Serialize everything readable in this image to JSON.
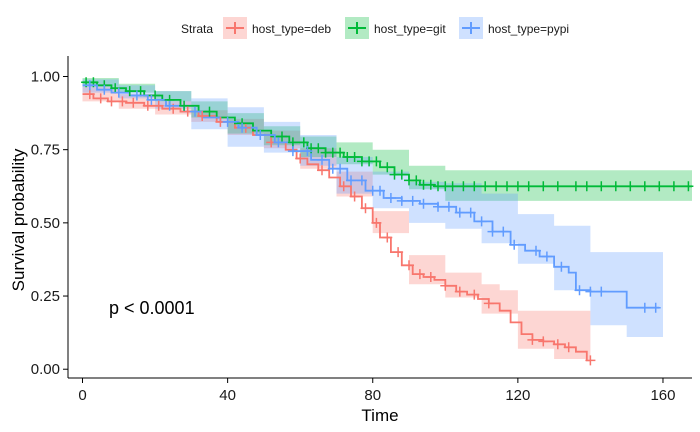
{
  "chart_data": {
    "type": "line",
    "subtype": "kaplan-meier survival curve with confidence bands and censor marks",
    "xlabel": "Time",
    "ylabel": "Survival probability",
    "xlim": [
      -4,
      168
    ],
    "ylim": [
      -0.03,
      1.07
    ],
    "x_ticks": [
      0,
      40,
      80,
      120,
      160
    ],
    "y_ticks": [
      0.0,
      0.25,
      0.5,
      0.75,
      1.0
    ],
    "y_tick_labels": [
      "0.00",
      "0.25",
      "0.50",
      "0.75",
      "1.00"
    ],
    "grid": false,
    "legend": {
      "title": "Strata",
      "placement": "top",
      "entries": [
        "host_type=deb",
        "host_type=git",
        "host_type=pypi"
      ]
    },
    "annotation": "p < 0.0001",
    "series": [
      {
        "name": "host_type=deb",
        "color": "#F8766D",
        "points": [
          [
            0,
            0.94
          ],
          [
            3,
            0.925
          ],
          [
            7,
            0.915
          ],
          [
            12,
            0.91
          ],
          [
            17,
            0.9
          ],
          [
            22,
            0.89
          ],
          [
            27,
            0.88
          ],
          [
            32,
            0.865
          ],
          [
            37,
            0.845
          ],
          [
            42,
            0.825
          ],
          [
            47,
            0.8
          ],
          [
            52,
            0.775
          ],
          [
            56,
            0.75
          ],
          [
            59,
            0.72
          ],
          [
            62,
            0.7
          ],
          [
            65,
            0.68
          ],
          [
            68,
            0.655
          ],
          [
            71,
            0.625
          ],
          [
            74,
            0.59
          ],
          [
            77,
            0.55
          ],
          [
            80,
            0.5
          ],
          [
            82,
            0.45
          ],
          [
            85,
            0.4
          ],
          [
            88,
            0.355
          ],
          [
            91,
            0.325
          ],
          [
            94,
            0.315
          ],
          [
            97,
            0.305
          ],
          [
            100,
            0.285
          ],
          [
            103,
            0.265
          ],
          [
            106,
            0.255
          ],
          [
            109,
            0.24
          ],
          [
            112,
            0.225
          ],
          [
            115,
            0.2
          ],
          [
            118,
            0.16
          ],
          [
            121,
            0.12
          ],
          [
            124,
            0.1
          ],
          [
            127,
            0.095
          ],
          [
            130,
            0.085
          ],
          [
            133,
            0.075
          ],
          [
            136,
            0.06
          ],
          [
            139,
            0.03
          ],
          [
            140,
            0.03
          ]
        ],
        "ci_upper": [
          [
            0,
            0.965
          ],
          [
            10,
            0.94
          ],
          [
            20,
            0.915
          ],
          [
            30,
            0.885
          ],
          [
            40,
            0.855
          ],
          [
            50,
            0.815
          ],
          [
            60,
            0.755
          ],
          [
            70,
            0.675
          ],
          [
            80,
            0.54
          ],
          [
            90,
            0.39
          ],
          [
            100,
            0.33
          ],
          [
            110,
            0.29
          ],
          [
            115,
            0.27
          ],
          [
            120,
            0.2
          ],
          [
            130,
            0.2
          ],
          [
            140,
            0.2
          ]
        ],
        "ci_lower": [
          [
            0,
            0.915
          ],
          [
            10,
            0.89
          ],
          [
            20,
            0.87
          ],
          [
            30,
            0.845
          ],
          [
            40,
            0.8
          ],
          [
            50,
            0.755
          ],
          [
            60,
            0.685
          ],
          [
            70,
            0.59
          ],
          [
            80,
            0.465
          ],
          [
            90,
            0.29
          ],
          [
            100,
            0.245
          ],
          [
            110,
            0.19
          ],
          [
            120,
            0.07
          ],
          [
            130,
            0.035
          ],
          [
            140,
            0.01
          ]
        ],
        "censor_x": [
          2,
          5,
          8,
          11,
          14,
          18,
          21,
          25,
          29,
          33,
          38,
          45,
          52,
          60,
          66,
          72,
          75,
          78,
          81,
          84,
          87,
          90,
          93,
          96,
          100,
          104,
          108,
          112,
          124,
          127,
          131,
          134,
          140
        ]
      },
      {
        "name": "host_type=git",
        "color": "#00BA38",
        "points": [
          [
            0,
            0.98
          ],
          [
            4,
            0.97
          ],
          [
            8,
            0.96
          ],
          [
            12,
            0.95
          ],
          [
            17,
            0.935
          ],
          [
            22,
            0.92
          ],
          [
            27,
            0.9
          ],
          [
            32,
            0.88
          ],
          [
            37,
            0.86
          ],
          [
            42,
            0.84
          ],
          [
            47,
            0.815
          ],
          [
            52,
            0.795
          ],
          [
            57,
            0.775
          ],
          [
            62,
            0.755
          ],
          [
            67,
            0.74
          ],
          [
            72,
            0.725
          ],
          [
            77,
            0.71
          ],
          [
            82,
            0.69
          ],
          [
            86,
            0.665
          ],
          [
            90,
            0.645
          ],
          [
            93,
            0.63
          ],
          [
            97,
            0.625
          ],
          [
            168,
            0.625
          ]
        ],
        "ci_upper": [
          [
            0,
            0.995
          ],
          [
            10,
            0.975
          ],
          [
            20,
            0.95
          ],
          [
            30,
            0.915
          ],
          [
            40,
            0.875
          ],
          [
            50,
            0.83
          ],
          [
            60,
            0.795
          ],
          [
            70,
            0.775
          ],
          [
            80,
            0.75
          ],
          [
            90,
            0.695
          ],
          [
            100,
            0.68
          ],
          [
            168,
            0.68
          ]
        ],
        "ci_lower": [
          [
            0,
            0.965
          ],
          [
            10,
            0.945
          ],
          [
            20,
            0.915
          ],
          [
            30,
            0.86
          ],
          [
            40,
            0.805
          ],
          [
            50,
            0.765
          ],
          [
            60,
            0.725
          ],
          [
            70,
            0.7
          ],
          [
            80,
            0.665
          ],
          [
            90,
            0.615
          ],
          [
            100,
            0.575
          ],
          [
            168,
            0.575
          ]
        ],
        "censor_x": [
          1,
          3,
          6,
          9,
          13,
          16,
          20,
          24,
          28,
          35,
          44,
          55,
          58,
          61,
          63,
          65,
          67,
          69,
          71,
          73,
          75,
          77,
          79,
          81,
          84,
          86,
          88,
          90,
          92,
          94,
          96,
          98,
          100,
          102,
          105,
          108,
          111,
          114,
          117,
          120,
          123,
          127,
          131,
          136,
          139,
          143,
          147,
          151,
          155,
          159,
          163,
          167
        ]
      },
      {
        "name": "host_type=pypi",
        "color": "#619CFF",
        "points": [
          [
            0,
            0.97
          ],
          [
            4,
            0.955
          ],
          [
            8,
            0.945
          ],
          [
            13,
            0.935
          ],
          [
            18,
            0.92
          ],
          [
            23,
            0.9
          ],
          [
            28,
            0.88
          ],
          [
            33,
            0.86
          ],
          [
            38,
            0.845
          ],
          [
            43,
            0.825
          ],
          [
            48,
            0.8
          ],
          [
            53,
            0.775
          ],
          [
            58,
            0.745
          ],
          [
            63,
            0.715
          ],
          [
            68,
            0.685
          ],
          [
            73,
            0.645
          ],
          [
            78,
            0.61
          ],
          [
            83,
            0.585
          ],
          [
            88,
            0.575
          ],
          [
            93,
            0.565
          ],
          [
            98,
            0.555
          ],
          [
            103,
            0.535
          ],
          [
            108,
            0.505
          ],
          [
            113,
            0.47
          ],
          [
            118,
            0.425
          ],
          [
            122,
            0.405
          ],
          [
            126,
            0.385
          ],
          [
            130,
            0.35
          ],
          [
            134,
            0.33
          ],
          [
            136,
            0.27
          ],
          [
            140,
            0.265
          ],
          [
            145,
            0.265
          ],
          [
            150,
            0.21
          ],
          [
            159,
            0.21
          ]
        ],
        "ci_upper": [
          [
            0,
            0.99
          ],
          [
            10,
            0.97
          ],
          [
            20,
            0.95
          ],
          [
            30,
            0.925
          ],
          [
            40,
            0.895
          ],
          [
            50,
            0.845
          ],
          [
            60,
            0.8
          ],
          [
            70,
            0.725
          ],
          [
            80,
            0.675
          ],
          [
            90,
            0.64
          ],
          [
            100,
            0.635
          ],
          [
            110,
            0.6
          ],
          [
            120,
            0.53
          ],
          [
            130,
            0.49
          ],
          [
            140,
            0.4
          ],
          [
            150,
            0.4
          ],
          [
            160,
            0.4
          ]
        ],
        "ci_lower": [
          [
            0,
            0.945
          ],
          [
            10,
            0.925
          ],
          [
            20,
            0.89
          ],
          [
            30,
            0.82
          ],
          [
            40,
            0.76
          ],
          [
            50,
            0.74
          ],
          [
            60,
            0.695
          ],
          [
            70,
            0.6
          ],
          [
            80,
            0.55
          ],
          [
            90,
            0.5
          ],
          [
            100,
            0.48
          ],
          [
            110,
            0.43
          ],
          [
            120,
            0.36
          ],
          [
            130,
            0.27
          ],
          [
            140,
            0.15
          ],
          [
            150,
            0.11
          ],
          [
            160,
            0.11
          ]
        ],
        "censor_x": [
          2,
          6,
          10,
          15,
          19,
          24,
          31,
          40,
          44,
          49,
          54,
          58,
          62,
          66,
          69,
          71,
          74,
          77,
          80,
          82,
          85,
          88,
          91,
          94,
          98,
          101,
          104,
          107,
          110,
          113,
          116,
          119,
          125,
          128,
          132,
          137,
          140,
          143,
          155,
          158
        ]
      }
    ]
  }
}
